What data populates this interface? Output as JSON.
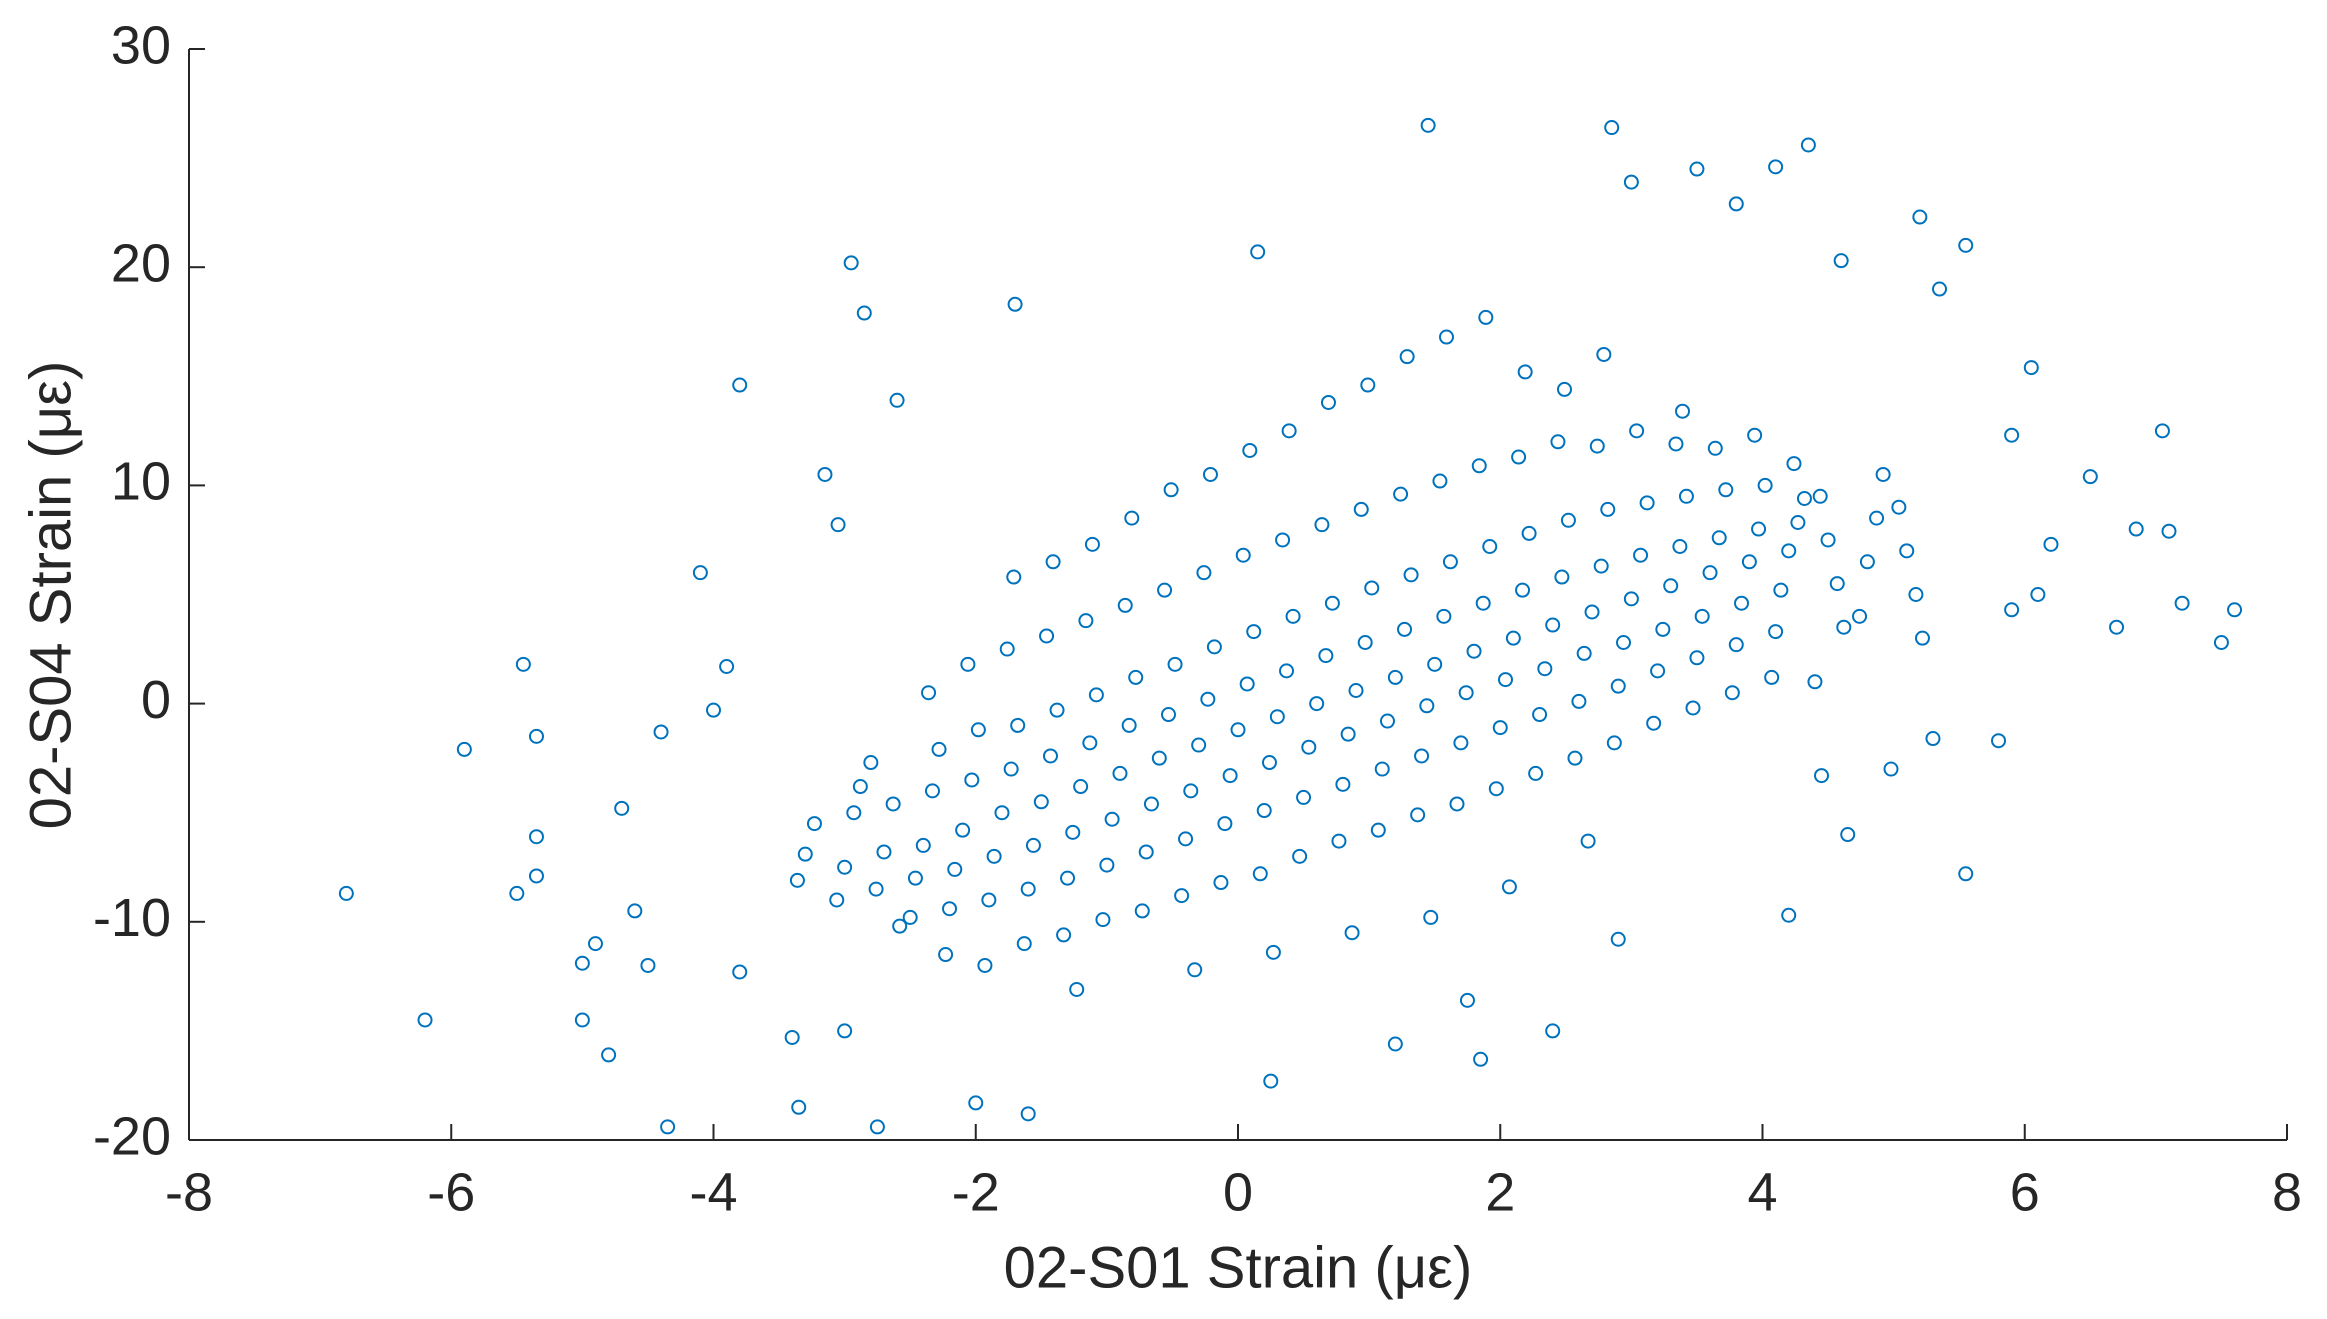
{
  "chart_data": {
    "type": "scatter",
    "x_label": "02-S01 Strain (με)",
    "y_label": "02-S04 Strain (με)",
    "color": "#0072bd",
    "xlim": [
      -8,
      8
    ],
    "xticks": [
      -8,
      -6,
      -4,
      -2,
      0,
      2,
      4,
      6,
      8
    ],
    "ylim": [
      -20,
      30
    ],
    "yticks": [
      -20,
      -10,
      0,
      10,
      20,
      30
    ],
    "x": [
      -3.3,
      -3.23,
      -3.36,
      -3.0,
      -2.93,
      -3.06,
      -2.88,
      -2.7,
      -2.63,
      -2.76,
      -2.58,
      -2.8,
      -2.4,
      -2.33,
      -2.46,
      -2.28,
      -2.5,
      -2.36,
      -2.1,
      -2.03,
      -2.16,
      -1.98,
      -2.2,
      -2.06,
      -2.23,
      -1.8,
      -1.73,
      -1.86,
      -1.68,
      -1.9,
      -1.76,
      -1.93,
      -1.71,
      -1.5,
      -1.43,
      -1.56,
      -1.38,
      -1.6,
      -1.46,
      -1.63,
      -1.41,
      -1.2,
      -1.13,
      -1.26,
      -1.08,
      -1.3,
      -1.16,
      -1.33,
      -1.11,
      -1.23,
      -0.9,
      -0.83,
      -0.96,
      -0.78,
      -1.0,
      -0.86,
      -1.03,
      -0.81,
      -0.6,
      -0.53,
      -0.66,
      -0.48,
      -0.7,
      -0.56,
      -0.73,
      -0.51,
      -0.3,
      -0.23,
      -0.36,
      -0.18,
      -0.4,
      -0.26,
      -0.43,
      -0.21,
      -0.33,
      0.0,
      0.07,
      -0.06,
      0.12,
      -0.1,
      0.04,
      -0.13,
      0.09,
      0.3,
      0.37,
      0.24,
      0.42,
      0.2,
      0.34,
      0.17,
      0.39,
      0.27,
      0.6,
      0.67,
      0.54,
      0.72,
      0.5,
      0.64,
      0.47,
      0.69,
      0.9,
      0.97,
      0.84,
      1.02,
      0.8,
      0.94,
      0.77,
      0.99,
      0.87,
      1.2,
      1.27,
      1.14,
      1.32,
      1.1,
      1.24,
      1.07,
      1.29,
      1.5,
      1.57,
      1.44,
      1.62,
      1.4,
      1.54,
      1.37,
      1.59,
      1.47,
      1.8,
      1.87,
      1.74,
      1.92,
      1.7,
      1.84,
      1.67,
      1.89,
      2.1,
      2.17,
      2.04,
      2.22,
      2.0,
      2.14,
      1.97,
      2.19,
      2.07,
      2.4,
      2.47,
      2.34,
      2.52,
      2.3,
      2.44,
      2.27,
      2.49,
      2.7,
      2.77,
      2.64,
      2.82,
      2.6,
      2.74,
      2.57,
      2.79,
      2.67,
      3.0,
      3.07,
      2.94,
      3.12,
      2.9,
      3.04,
      2.87,
      3.3,
      3.37,
      3.24,
      3.42,
      3.2,
      3.34,
      3.17,
      3.39,
      3.6,
      3.67,
      3.54,
      3.72,
      3.5,
      3.64,
      3.47,
      3.9,
      3.97,
      3.84,
      4.02,
      3.8,
      3.94,
      3.77,
      4.2,
      4.27,
      4.14,
      4.32,
      4.1,
      4.24,
      4.07,
      4.5,
      4.57,
      4.44,
      4.62,
      4.4,
      4.8,
      4.87,
      4.74,
      4.92,
      5.1,
      5.17,
      5.04,
      5.22,
      -6.8,
      -6.2,
      -5.9,
      -5.45,
      -5.35,
      -5.35,
      -5.5,
      -5.35,
      -5.0,
      -4.8,
      -5.0,
      -4.9,
      -4.35,
      -4.1,
      -3.8,
      -2.95,
      -2.85,
      -3.15,
      -3.05,
      -2.6,
      -1.7,
      -3.35,
      -2.75,
      -2.0,
      -1.6,
      -3.4,
      -3.0,
      0.25,
      0.15,
      1.45,
      2.85,
      4.35,
      4.1,
      3.5,
      3.0,
      3.8,
      5.2,
      5.55,
      4.6,
      5.35,
      6.05,
      5.9,
      7.05,
      6.5,
      6.85,
      7.1,
      7.6,
      7.2,
      7.5,
      6.7,
      5.55,
      4.65,
      4.2,
      2.9,
      2.4,
      1.85,
      1.2,
      1.75,
      6.1,
      6.2,
      5.9,
      5.8,
      4.98,
      5.3,
      4.45,
      -3.8,
      -4.5,
      -4.6,
      -4.7,
      -4.4,
      -3.9,
      -4.0
    ],
    "values": [
      -6.9,
      -5.5,
      -8.1,
      -7.5,
      -5.0,
      -9.0,
      -3.8,
      -6.8,
      -4.6,
      -8.5,
      -10.2,
      -2.7,
      -6.5,
      -4.0,
      -8.0,
      -2.1,
      -9.8,
      0.5,
      -5.8,
      -3.5,
      -7.6,
      -1.2,
      -9.4,
      1.8,
      -11.5,
      -5.0,
      -3.0,
      -7.0,
      -1.0,
      -9.0,
      2.5,
      -12.0,
      5.8,
      -4.5,
      -2.4,
      -6.5,
      -0.3,
      -8.5,
      3.1,
      -11.0,
      6.5,
      -3.8,
      -1.8,
      -5.9,
      0.4,
      -8.0,
      3.8,
      -10.6,
      7.3,
      -13.1,
      -3.2,
      -1.0,
      -5.3,
      1.2,
      -7.4,
      4.5,
      -9.9,
      8.5,
      -2.5,
      -0.5,
      -4.6,
      1.8,
      -6.8,
      5.2,
      -9.5,
      9.8,
      -1.9,
      0.2,
      -4.0,
      2.6,
      -6.2,
      6.0,
      -8.8,
      10.5,
      -12.2,
      -1.2,
      0.9,
      -3.3,
      3.3,
      -5.5,
      6.8,
      -8.2,
      11.6,
      -0.6,
      1.5,
      -2.7,
      4.0,
      -4.9,
      7.5,
      -7.8,
      12.5,
      -11.4,
      0.0,
      2.2,
      -2.0,
      4.6,
      -4.3,
      8.2,
      -7.0,
      13.8,
      0.6,
      2.8,
      -1.4,
      5.3,
      -3.7,
      8.9,
      -6.3,
      14.6,
      -10.5,
      1.2,
      3.4,
      -0.8,
      5.9,
      -3.0,
      9.6,
      -5.8,
      15.9,
      1.8,
      4.0,
      -0.1,
      6.5,
      -2.4,
      10.2,
      -5.1,
      16.8,
      -9.8,
      2.4,
      4.6,
      0.5,
      7.2,
      -1.8,
      10.9,
      -4.6,
      17.7,
      3.0,
      5.2,
      1.1,
      7.8,
      -1.1,
      11.3,
      -3.9,
      15.2,
      -8.4,
      3.6,
      5.8,
      1.6,
      8.4,
      -0.5,
      12.0,
      -3.2,
      14.4,
      4.2,
      6.3,
      2.3,
      8.9,
      0.1,
      11.8,
      -2.5,
      16.0,
      -6.3,
      4.8,
      6.8,
      2.8,
      9.2,
      0.8,
      12.5,
      -1.8,
      5.4,
      7.2,
      3.4,
      9.5,
      1.5,
      11.9,
      -0.9,
      13.4,
      6.0,
      7.6,
      4.0,
      9.8,
      2.1,
      11.7,
      -0.2,
      6.5,
      8.0,
      4.6,
      10.0,
      2.7,
      12.3,
      0.5,
      7.0,
      8.3,
      5.2,
      9.4,
      3.3,
      11.0,
      1.2,
      7.5,
      5.5,
      9.5,
      3.5,
      1.0,
      6.5,
      8.5,
      4.0,
      10.5,
      7.0,
      5.0,
      9.0,
      3.0,
      -8.7,
      -14.5,
      -2.1,
      1.8,
      -1.5,
      -6.1,
      -8.7,
      -7.9,
      -14.5,
      -16.1,
      -11.9,
      -11,
      -19.4,
      6,
      14.6,
      20.2,
      17.9,
      10.5,
      8.2,
      13.9,
      18.3,
      -18.5,
      -19.4,
      -18.3,
      -18.8,
      -15.3,
      -15,
      -17.3,
      20.7,
      26.5,
      26.4,
      25.6,
      24.6,
      24.5,
      23.9,
      22.9,
      22.3,
      21,
      20.3,
      19,
      15.4,
      12.3,
      12.5,
      10.4,
      8,
      7.9,
      4.3,
      4.6,
      2.8,
      3.5,
      -7.8,
      -6.0,
      -9.7,
      -10.8,
      -15,
      -16.3,
      -15.6,
      -13.6,
      5.0,
      7.3,
      4.3,
      -1.7,
      -3,
      -1.6,
      -3.3,
      -12.3,
      -12,
      -9.5,
      -4.8,
      -1.3,
      1.7,
      -0.3
    ]
  }
}
